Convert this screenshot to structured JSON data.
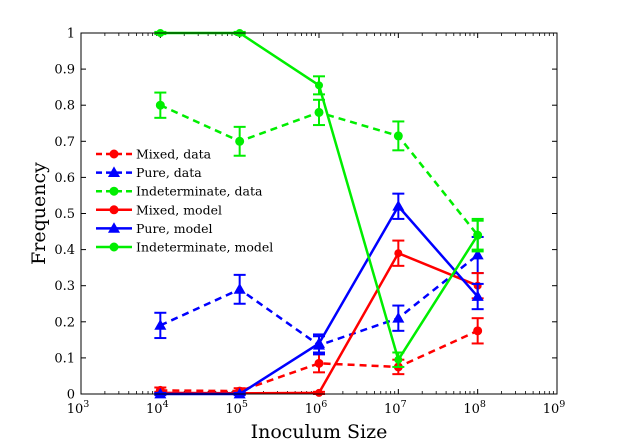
{
  "chart_data": {
    "type": "line",
    "title": "",
    "xlabel": "Inoculum Size",
    "ylabel": "Frequency",
    "xscale": "log",
    "xlim_exp": [
      3,
      9
    ],
    "ylim": [
      0,
      1
    ],
    "x_ticks": [
      {
        "base": "10",
        "exp": "3"
      },
      {
        "base": "10",
        "exp": "4"
      },
      {
        "base": "10",
        "exp": "5"
      },
      {
        "base": "10",
        "exp": "6"
      },
      {
        "base": "10",
        "exp": "7"
      },
      {
        "base": "10",
        "exp": "8"
      },
      {
        "base": "10",
        "exp": "9"
      }
    ],
    "y_ticks": [
      "0",
      "0.1",
      "0.2",
      "0.3",
      "0.4",
      "0.5",
      "0.6",
      "0.7",
      "0.8",
      "0.9",
      "1"
    ],
    "legend_position": "center-left",
    "series": [
      {
        "name": "Mixed, data",
        "color": "#ff0000",
        "dash": true,
        "marker": "circle",
        "x": [
          4,
          5,
          6,
          7,
          8
        ],
        "y": [
          0.01,
          0.008,
          0.085,
          0.075,
          0.175
        ],
        "err": [
          0.008,
          0.008,
          0.025,
          0.02,
          0.035
        ]
      },
      {
        "name": "Pure, data",
        "color": "#0000ff",
        "dash": true,
        "marker": "triangle",
        "x": [
          4,
          5,
          6,
          7,
          8
        ],
        "y": [
          0.19,
          0.29,
          0.135,
          0.21,
          0.385
        ],
        "err": [
          0.035,
          0.04,
          0.025,
          0.035,
          0.05
        ]
      },
      {
        "name": "Indeterminate, data",
        "color": "#00ee00",
        "dash": true,
        "marker": "circle",
        "x": [
          4,
          5,
          6,
          7,
          8
        ],
        "y": [
          0.8,
          0.7,
          0.78,
          0.715,
          0.44
        ],
        "err": [
          0.035,
          0.04,
          0.035,
          0.04,
          0.045
        ]
      },
      {
        "name": "Mixed, model",
        "color": "#ff0000",
        "dash": false,
        "marker": "circle",
        "x": [
          4,
          5,
          6,
          7,
          8
        ],
        "y": [
          0.003,
          0.002,
          0.003,
          0.39,
          0.3
        ],
        "err": [
          0.003,
          0.003,
          0.003,
          0.035,
          0.035
        ]
      },
      {
        "name": "Pure, model",
        "color": "#0000ff",
        "dash": false,
        "marker": "triangle",
        "x": [
          4,
          5,
          6,
          7,
          8
        ],
        "y": [
          0.0,
          0.0,
          0.14,
          0.52,
          0.27
        ],
        "err": [
          0.003,
          0.003,
          0.025,
          0.035,
          0.035
        ]
      },
      {
        "name": "Indeterminate, model",
        "color": "#00ee00",
        "dash": false,
        "marker": "circle",
        "x": [
          4,
          5,
          6,
          7,
          8
        ],
        "y": [
          1.0,
          1.0,
          0.855,
          0.095,
          0.44
        ],
        "err": [
          0.003,
          0.003,
          0.025,
          0.02,
          0.04
        ]
      }
    ]
  }
}
